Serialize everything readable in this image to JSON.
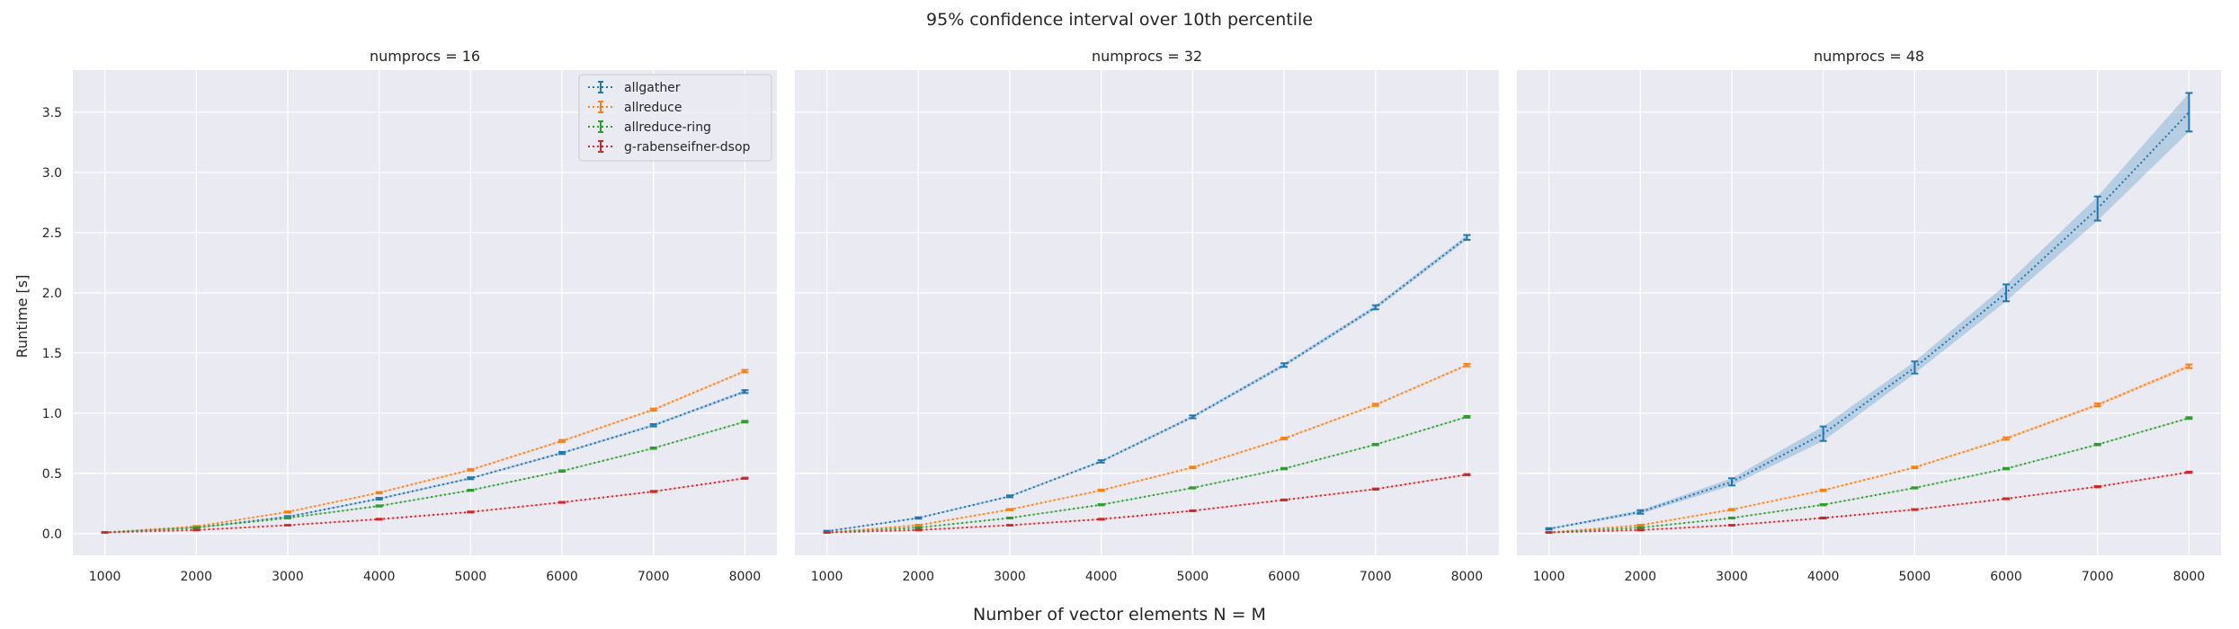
{
  "suptitle": "95% confidence interval over 10th percentile",
  "xlabel": "Number of vector elements N = M",
  "ylabel": "Runtime [s]",
  "colors": {
    "allgather": "#1f77b4",
    "allreduce": "#ff7f0e",
    "allreduce-ring": "#2ca02c",
    "g-rabenseifner-dsop": "#d62728",
    "panel_bg": "#eaeaf2",
    "grid": "#ffffff"
  },
  "chart_data": [
    {
      "type": "line",
      "title": "numprocs = 16",
      "x": [
        1000,
        2000,
        3000,
        4000,
        5000,
        6000,
        7000,
        8000
      ],
      "xlim": [
        650,
        8350
      ],
      "ylim": [
        -0.18,
        3.85
      ],
      "xticks": [
        1000,
        2000,
        3000,
        4000,
        5000,
        6000,
        7000,
        8000
      ],
      "yticks": [
        0.0,
        0.5,
        1.0,
        1.5,
        2.0,
        2.5,
        3.0,
        3.5
      ],
      "ytick_labels": [
        "0.0",
        "0.5",
        "1.0",
        "1.5",
        "2.0",
        "2.5",
        "3.0",
        "3.5"
      ],
      "grid": true,
      "legend": "top-right",
      "series": [
        {
          "name": "allgather",
          "values": [
            0.01,
            0.05,
            0.14,
            0.29,
            0.46,
            0.67,
            0.9,
            1.18
          ],
          "err": [
            0.003,
            0.004,
            0.006,
            0.007,
            0.008,
            0.009,
            0.01,
            0.012
          ]
        },
        {
          "name": "allreduce",
          "values": [
            0.01,
            0.06,
            0.18,
            0.34,
            0.53,
            0.77,
            1.03,
            1.35
          ],
          "err": [
            0.003,
            0.004,
            0.005,
            0.006,
            0.007,
            0.008,
            0.009,
            0.01
          ]
        },
        {
          "name": "allreduce-ring",
          "values": [
            0.01,
            0.05,
            0.13,
            0.23,
            0.36,
            0.52,
            0.71,
            0.93
          ],
          "err": [
            0.003,
            0.003,
            0.004,
            0.005,
            0.005,
            0.006,
            0.006,
            0.007
          ]
        },
        {
          "name": "g-rabenseifner-dsop",
          "values": [
            0.01,
            0.03,
            0.07,
            0.12,
            0.18,
            0.26,
            0.35,
            0.46
          ],
          "err": [
            0.002,
            0.003,
            0.003,
            0.004,
            0.004,
            0.004,
            0.005,
            0.005
          ]
        }
      ]
    },
    {
      "type": "line",
      "title": "numprocs = 32",
      "x": [
        1000,
        2000,
        3000,
        4000,
        5000,
        6000,
        7000,
        8000
      ],
      "xlim": [
        650,
        8350
      ],
      "ylim": [
        -0.18,
        3.85
      ],
      "xticks": [
        1000,
        2000,
        3000,
        4000,
        5000,
        6000,
        7000,
        8000
      ],
      "grid": true,
      "series": [
        {
          "name": "allgather",
          "values": [
            0.02,
            0.13,
            0.31,
            0.6,
            0.97,
            1.4,
            1.88,
            2.46
          ],
          "err": [
            0.004,
            0.006,
            0.008,
            0.01,
            0.012,
            0.015,
            0.017,
            0.02
          ]
        },
        {
          "name": "allreduce",
          "values": [
            0.01,
            0.07,
            0.2,
            0.36,
            0.55,
            0.79,
            1.07,
            1.4
          ],
          "err": [
            0.003,
            0.004,
            0.005,
            0.006,
            0.007,
            0.008,
            0.009,
            0.01
          ]
        },
        {
          "name": "allreduce-ring",
          "values": [
            0.01,
            0.05,
            0.13,
            0.24,
            0.38,
            0.54,
            0.74,
            0.97
          ],
          "err": [
            0.003,
            0.003,
            0.004,
            0.005,
            0.005,
            0.006,
            0.006,
            0.007
          ]
        },
        {
          "name": "g-rabenseifner-dsop",
          "values": [
            0.01,
            0.03,
            0.07,
            0.12,
            0.19,
            0.28,
            0.37,
            0.49
          ],
          "err": [
            0.002,
            0.003,
            0.003,
            0.004,
            0.004,
            0.004,
            0.005,
            0.005
          ]
        }
      ]
    },
    {
      "type": "line",
      "title": "numprocs = 48",
      "x": [
        1000,
        2000,
        3000,
        4000,
        5000,
        6000,
        7000,
        8000
      ],
      "xlim": [
        650,
        8350
      ],
      "ylim": [
        -0.18,
        3.85
      ],
      "xticks": [
        1000,
        2000,
        3000,
        4000,
        5000,
        6000,
        7000,
        8000
      ],
      "grid": true,
      "series": [
        {
          "name": "allgather",
          "values": [
            0.04,
            0.18,
            0.43,
            0.83,
            1.38,
            2.0,
            2.7,
            3.5
          ],
          "err": [
            0.006,
            0.015,
            0.03,
            0.06,
            0.05,
            0.07,
            0.1,
            0.16
          ]
        },
        {
          "name": "allreduce",
          "values": [
            0.01,
            0.07,
            0.2,
            0.36,
            0.55,
            0.79,
            1.07,
            1.39
          ],
          "err": [
            0.003,
            0.004,
            0.005,
            0.006,
            0.007,
            0.01,
            0.012,
            0.015
          ]
        },
        {
          "name": "allreduce-ring",
          "values": [
            0.01,
            0.05,
            0.13,
            0.24,
            0.38,
            0.54,
            0.74,
            0.96
          ],
          "err": [
            0.003,
            0.003,
            0.004,
            0.005,
            0.005,
            0.006,
            0.006,
            0.007
          ]
        },
        {
          "name": "g-rabenseifner-dsop",
          "values": [
            0.01,
            0.03,
            0.07,
            0.13,
            0.2,
            0.29,
            0.39,
            0.51
          ],
          "err": [
            0.002,
            0.003,
            0.003,
            0.004,
            0.004,
            0.004,
            0.005,
            0.005
          ]
        }
      ]
    }
  ]
}
